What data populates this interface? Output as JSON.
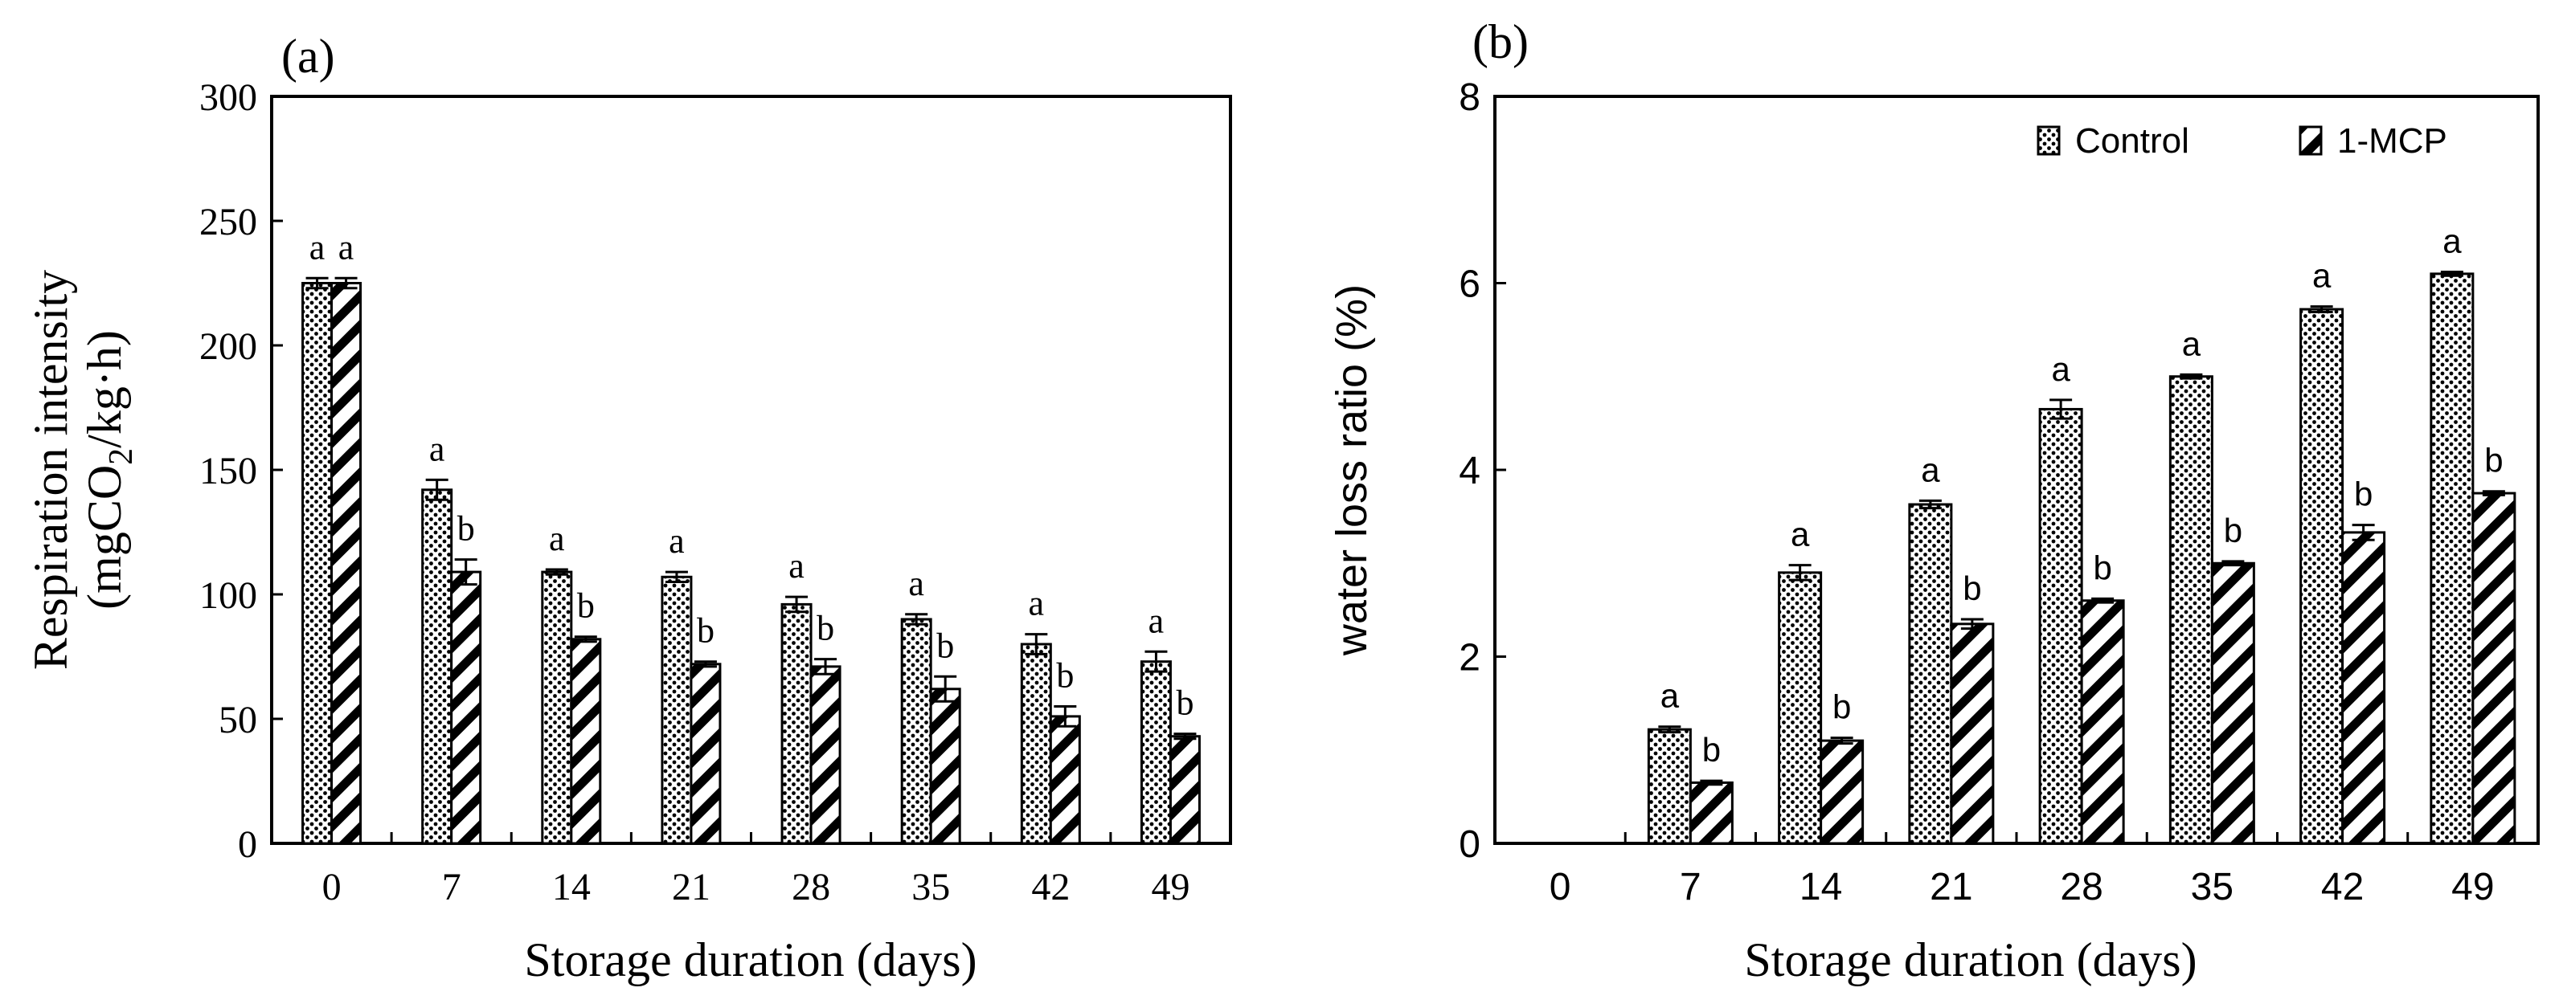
{
  "colors": {
    "axis": "#000000",
    "background": "#ffffff",
    "bar_fill": "#ffffff"
  },
  "chart_data": [
    {
      "panel": "(a)",
      "type": "bar",
      "title": "",
      "xlabel": "Storage duration (days)",
      "ylabel_main": "Respiration intensity",
      "ylabel_sub_prefix": "(mgCO",
      "ylabel_sub_subscript": "2",
      "ylabel_sub_suffix": "/kg·h)",
      "ylim": [
        0,
        300
      ],
      "yticks": [
        0,
        50,
        100,
        150,
        200,
        250,
        300
      ],
      "ytick_labels": [
        "0",
        "50",
        "100",
        "150",
        "200",
        "250",
        "300"
      ],
      "categories": [
        "0",
        "7",
        "14",
        "21",
        "28",
        "35",
        "42",
        "49"
      ],
      "grid": false,
      "legend": "none",
      "series": [
        {
          "name": "Control",
          "pattern": "dots",
          "values": [
            225,
            142,
            109,
            107,
            96,
            90,
            80,
            73
          ],
          "errors": [
            2,
            4,
            1,
            2,
            3,
            2,
            4,
            4
          ],
          "sig_labels": [
            "a",
            "a",
            "a",
            "a",
            "a",
            "a",
            "a",
            "a"
          ]
        },
        {
          "name": "1-MCP",
          "pattern": "diagonal",
          "values": [
            225,
            109,
            82,
            72,
            71,
            62,
            51,
            43
          ],
          "errors": [
            2,
            5,
            1,
            1,
            3,
            5,
            4,
            1
          ],
          "sig_labels": [
            "a",
            "b",
            "b",
            "b",
            "b",
            "b",
            "b",
            "b"
          ]
        }
      ]
    },
    {
      "panel": "(b)",
      "type": "bar",
      "title": "",
      "xlabel": "Storage duration (days)",
      "ylabel_main": "water loss ratio (%)",
      "ylim": [
        0,
        8
      ],
      "yticks": [
        0,
        2,
        4,
        6,
        8
      ],
      "ytick_labels": [
        "0",
        "2",
        "4",
        "6",
        "8"
      ],
      "categories": [
        "0",
        "7",
        "14",
        "21",
        "28",
        "35",
        "42",
        "49"
      ],
      "grid": false,
      "legend": "top-right",
      "series": [
        {
          "name": "Control",
          "pattern": "dots",
          "values": [
            0,
            1.22,
            2.9,
            3.63,
            4.65,
            5.0,
            5.72,
            6.1
          ],
          "errors": [
            0,
            0.03,
            0.08,
            0.04,
            0.1,
            0.02,
            0.03,
            0.02
          ],
          "sig_labels": [
            "",
            "a",
            "a",
            "a",
            "a",
            "a",
            "a",
            "a"
          ]
        },
        {
          "name": "1-MCP",
          "pattern": "diagonal",
          "values": [
            0,
            0.65,
            1.1,
            2.35,
            2.6,
            3.0,
            3.33,
            3.75
          ],
          "errors": [
            0,
            0.02,
            0.03,
            0.05,
            0.02,
            0.02,
            0.08,
            0.02
          ],
          "sig_labels": [
            "",
            "b",
            "b",
            "b",
            "b",
            "b",
            "b",
            "b"
          ]
        }
      ]
    }
  ]
}
